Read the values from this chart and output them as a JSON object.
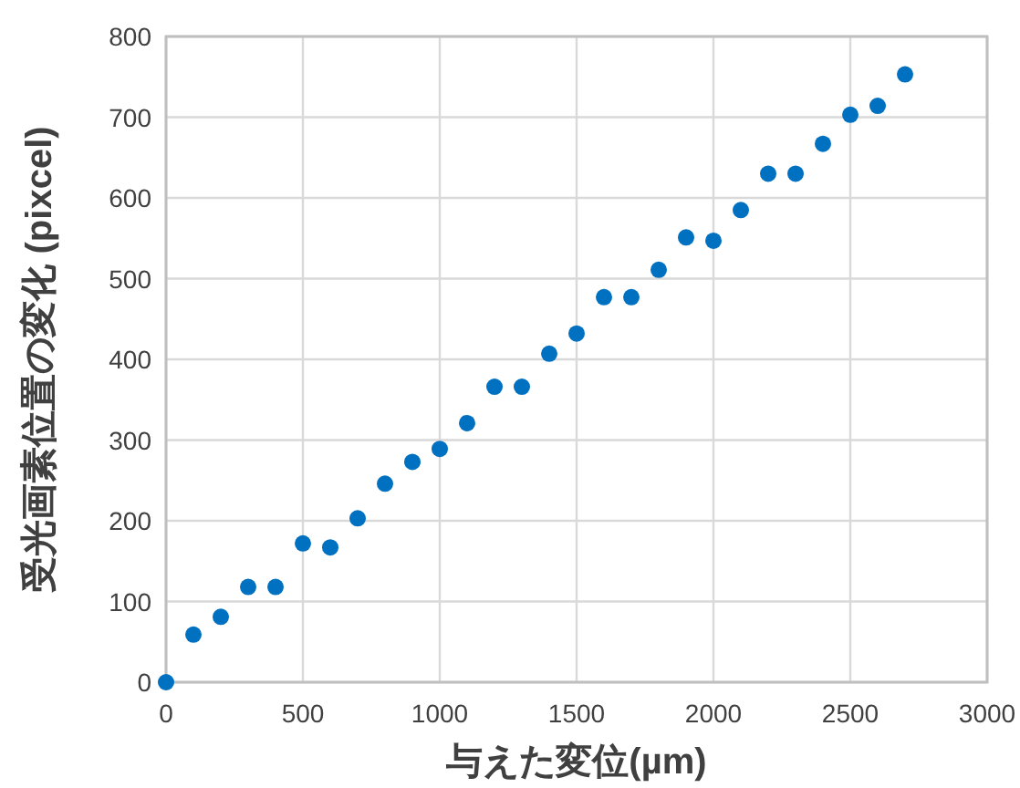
{
  "chart_data": {
    "type": "scatter",
    "xlabel": "与えた変位(µm)",
    "ylabel": "受光画素位置の変化 (pixcel)",
    "x": [
      0,
      100,
      200,
      300,
      400,
      500,
      600,
      700,
      800,
      900,
      1000,
      1100,
      1200,
      1300,
      1400,
      1500,
      1600,
      1700,
      1800,
      1900,
      2000,
      2100,
      2200,
      2300,
      2400,
      2500,
      2600,
      2700
    ],
    "series": [
      {
        "color": "#0070c0",
        "values": [
          0,
          59,
          81,
          118,
          118,
          172,
          167,
          203,
          246,
          273,
          289,
          321,
          366,
          366,
          407,
          432,
          477,
          477,
          511,
          551,
          547,
          585,
          630,
          630,
          667,
          703,
          714,
          753
        ]
      }
    ],
    "xlim": [
      0,
      3000
    ],
    "xticks": [
      0,
      500,
      1000,
      1500,
      2000,
      2500,
      3000
    ],
    "ylim": [
      0,
      800
    ],
    "yticks": [
      0,
      100,
      200,
      300,
      400,
      500,
      600,
      700,
      800
    ],
    "grid": true,
    "marker": "circle"
  }
}
